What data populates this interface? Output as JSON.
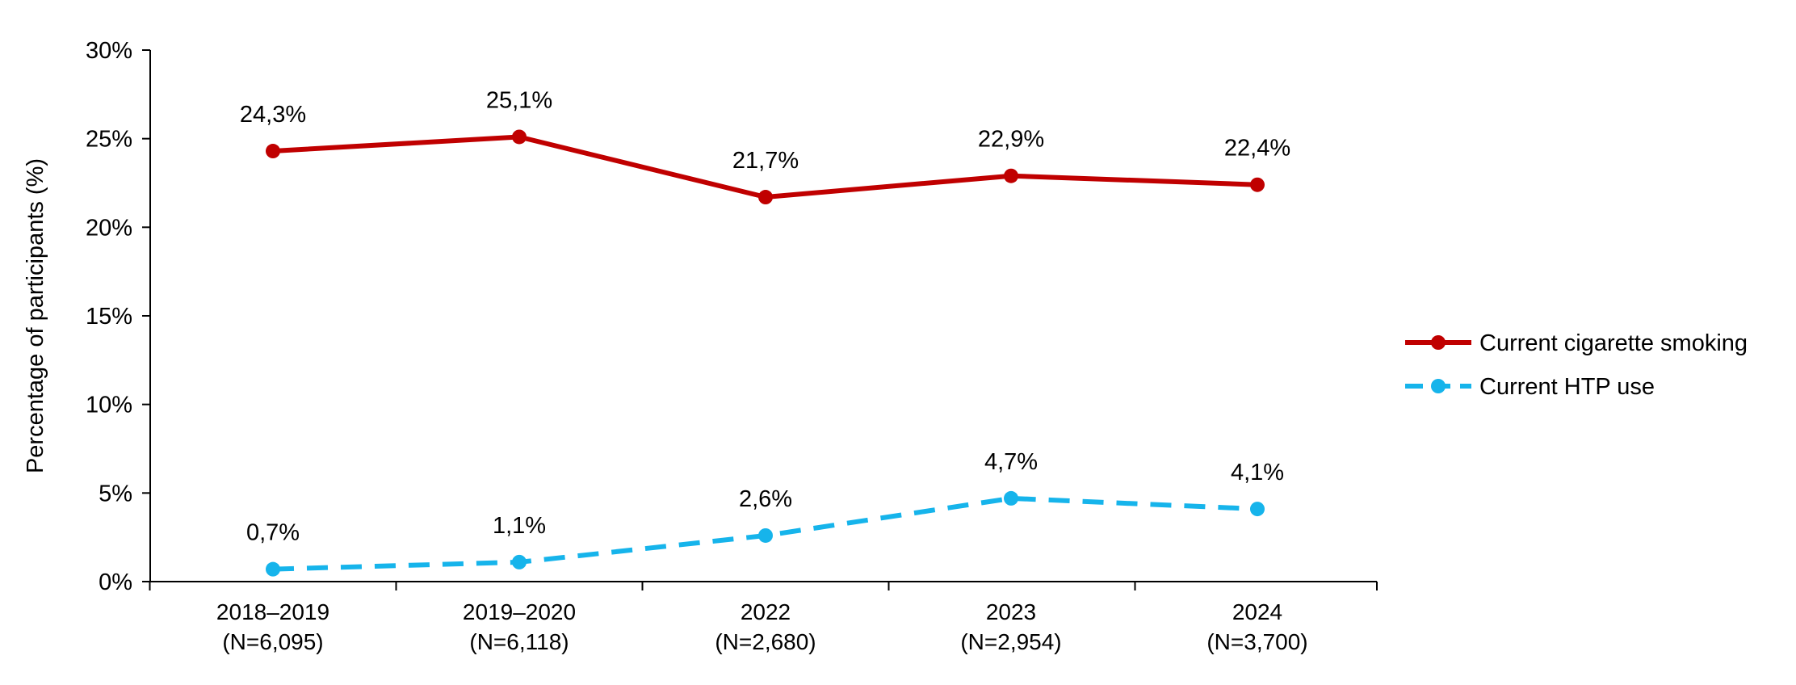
{
  "chart_data": {
    "type": "line",
    "title": "",
    "ylabel": "Percentage of participants (%)",
    "xlabel": "",
    "ylim": [
      0,
      30
    ],
    "y_ticks": [
      "0%",
      "5%",
      "10%",
      "15%",
      "20%",
      "25%",
      "30%"
    ],
    "y_tick_values": [
      0,
      5,
      10,
      15,
      20,
      25,
      30
    ],
    "categories": [
      {
        "year": "2018–2019",
        "n": "(N=6,095)"
      },
      {
        "year": "2019–2020",
        "n": "(N=6,118)"
      },
      {
        "year": "2022",
        "n": "(N=2,680)"
      },
      {
        "year": "2023",
        "n": "(N=2,954)"
      },
      {
        "year": "2024",
        "n": "(N=3,700)"
      }
    ],
    "grid": false,
    "legend_position": "right",
    "series": [
      {
        "name": "Current cigarette smoking",
        "values": [
          24.3,
          25.1,
          21.7,
          22.9,
          22.4
        ],
        "labels": [
          "24,3%",
          "25,1%",
          "21,7%",
          "22,9%",
          "22,4%"
        ],
        "color": "#c00000",
        "dashed": false
      },
      {
        "name": "Current HTP use",
        "values": [
          0.7,
          1.1,
          2.6,
          4.7,
          4.1
        ],
        "labels": [
          "0,7%",
          "1,1%",
          "2,6%",
          "4,7%",
          "4,1%"
        ],
        "color": "#16b4eb",
        "dashed": true
      }
    ]
  }
}
